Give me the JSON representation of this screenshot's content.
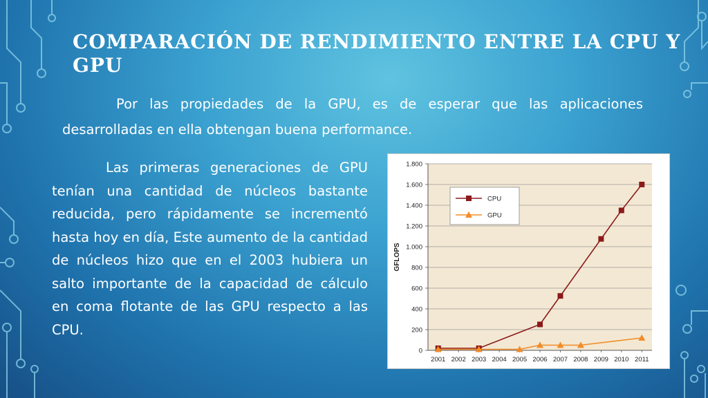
{
  "slide": {
    "title": "COMPARACIÓN DE RENDIMIENTO ENTRE LA CPU Y GPU",
    "intro": "Por las propiedades de la GPU, es de esperar que las aplicaciones desarrolladas en ella obtengan buena performance.",
    "body": "Las primeras generaciones de GPU tenían una cantidad de núcleos bastante reducida, pero rápidamente se incrementó hasta hoy en día, Este aumento de la cantidad de núcleos hizo que en el 2003 hubiera un salto importante de la capacidad de cálculo en coma flotante de las GPU respecto a las CPU."
  },
  "colors": {
    "cpu": "#8b1a1a",
    "gpu": "#f28c28",
    "plot_bg": "#f3e8d3",
    "grid": "#9a9a9a"
  },
  "chart_data": {
    "type": "line",
    "ylabel": "GFLOPS",
    "xlabel": "",
    "ylim": [
      0,
      1800
    ],
    "yticks": [
      0,
      200,
      400,
      600,
      800,
      1000,
      1200,
      1400,
      1600,
      1800
    ],
    "ytick_labels": [
      "0",
      "200",
      "400",
      "600",
      "800",
      "1.000",
      "1.200",
      "1.400",
      "1.600",
      "1.800"
    ],
    "categories": [
      "2001",
      "2002",
      "2003",
      "2004",
      "2005",
      "2006",
      "2007",
      "2008",
      "2009",
      "2010",
      "2011"
    ],
    "grid": true,
    "legend_position": "top-left",
    "series": [
      {
        "name": "CPU",
        "marker": "square",
        "x": [
          "2001",
          "2003",
          "2006",
          "2007",
          "2009",
          "2010",
          "2011"
        ],
        "values": [
          20,
          20,
          250,
          525,
          1075,
          1350,
          1600
        ]
      },
      {
        "name": "GPU",
        "marker": "triangle",
        "x": [
          "2001",
          "2003",
          "2005",
          "2006",
          "2007",
          "2008",
          "2011"
        ],
        "values": [
          10,
          10,
          10,
          50,
          50,
          50,
          120
        ]
      }
    ]
  }
}
